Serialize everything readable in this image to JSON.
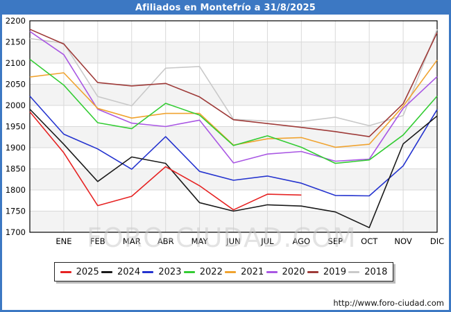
{
  "title": "Afiliados en Montefrío a 31/8/2025",
  "watermark": "FORO-CIUDAD.COM",
  "footer": {
    "url": "http://www.foro-ciudad.com"
  },
  "colors": {
    "frame": "#3c78c3",
    "title_text": "#ffffff",
    "plot_border": "#000000",
    "gridline": "#d9d9d9",
    "band": "#f3f3f3",
    "watermark": "#c9c9c9",
    "label": "#000000"
  },
  "chart_data": {
    "type": "line",
    "title": "Afiliados en Montefrío a 31/8/2025",
    "x_labels": [
      "ENE",
      "FEB",
      "MAR",
      "ABR",
      "MAY",
      "JUN",
      "JUL",
      "AGO",
      "SEP",
      "OCT",
      "NOV",
      "DIC"
    ],
    "ylim": [
      1700,
      2200
    ],
    "y_ticks": [
      2200,
      2150,
      2100,
      2050,
      2000,
      1950,
      1900,
      1850,
      1800,
      1750,
      1700
    ],
    "grid": true,
    "legend_position": "bottom",
    "first_point_at_axis_start": true,
    "series": [
      {
        "name": "2025",
        "color": "#e62222",
        "values": [
          1985,
          1888,
          1763,
          1785,
          1855,
          1810,
          1753,
          1790,
          1788
        ]
      },
      {
        "name": "2024",
        "color": "#1a1a1a",
        "values": [
          1991,
          1908,
          1820,
          1878,
          1863,
          1770,
          1750,
          1765,
          1762,
          1748,
          1711,
          1909,
          1975
        ]
      },
      {
        "name": "2023",
        "color": "#2433cf",
        "values": [
          2022,
          1932,
          1897,
          1849,
          1926,
          1844,
          1823,
          1833,
          1816,
          1787,
          1786,
          1857,
          1990
        ]
      },
      {
        "name": "2022",
        "color": "#33cc33",
        "values": [
          2109,
          2048,
          1959,
          1945,
          2005,
          1977,
          1905,
          1928,
          1901,
          1863,
          1871,
          1930,
          2022
        ]
      },
      {
        "name": "2021",
        "color": "#f0a32f",
        "values": [
          2067,
          2077,
          1993,
          1970,
          1981,
          1981,
          1906,
          1921,
          1924,
          1901,
          1908,
          1998,
          2107
        ]
      },
      {
        "name": "2020",
        "color": "#a957e3",
        "values": [
          2175,
          2120,
          1991,
          1958,
          1950,
          1965,
          1864,
          1885,
          1891,
          1868,
          1873,
          1993,
          2068
        ]
      },
      {
        "name": "2019",
        "color": "#9e3a38",
        "values": [
          2180,
          2145,
          2054,
          2046,
          2052,
          2020,
          1966,
          1957,
          1948,
          1938,
          1926,
          2004,
          2172
        ]
      },
      {
        "name": "2018",
        "color": "#c9c9c9",
        "values": [
          2158,
          2147,
          2021,
          1999,
          2088,
          2092,
          1967,
          1963,
          1962,
          1972,
          1952,
          1976,
          2180
        ]
      }
    ]
  }
}
